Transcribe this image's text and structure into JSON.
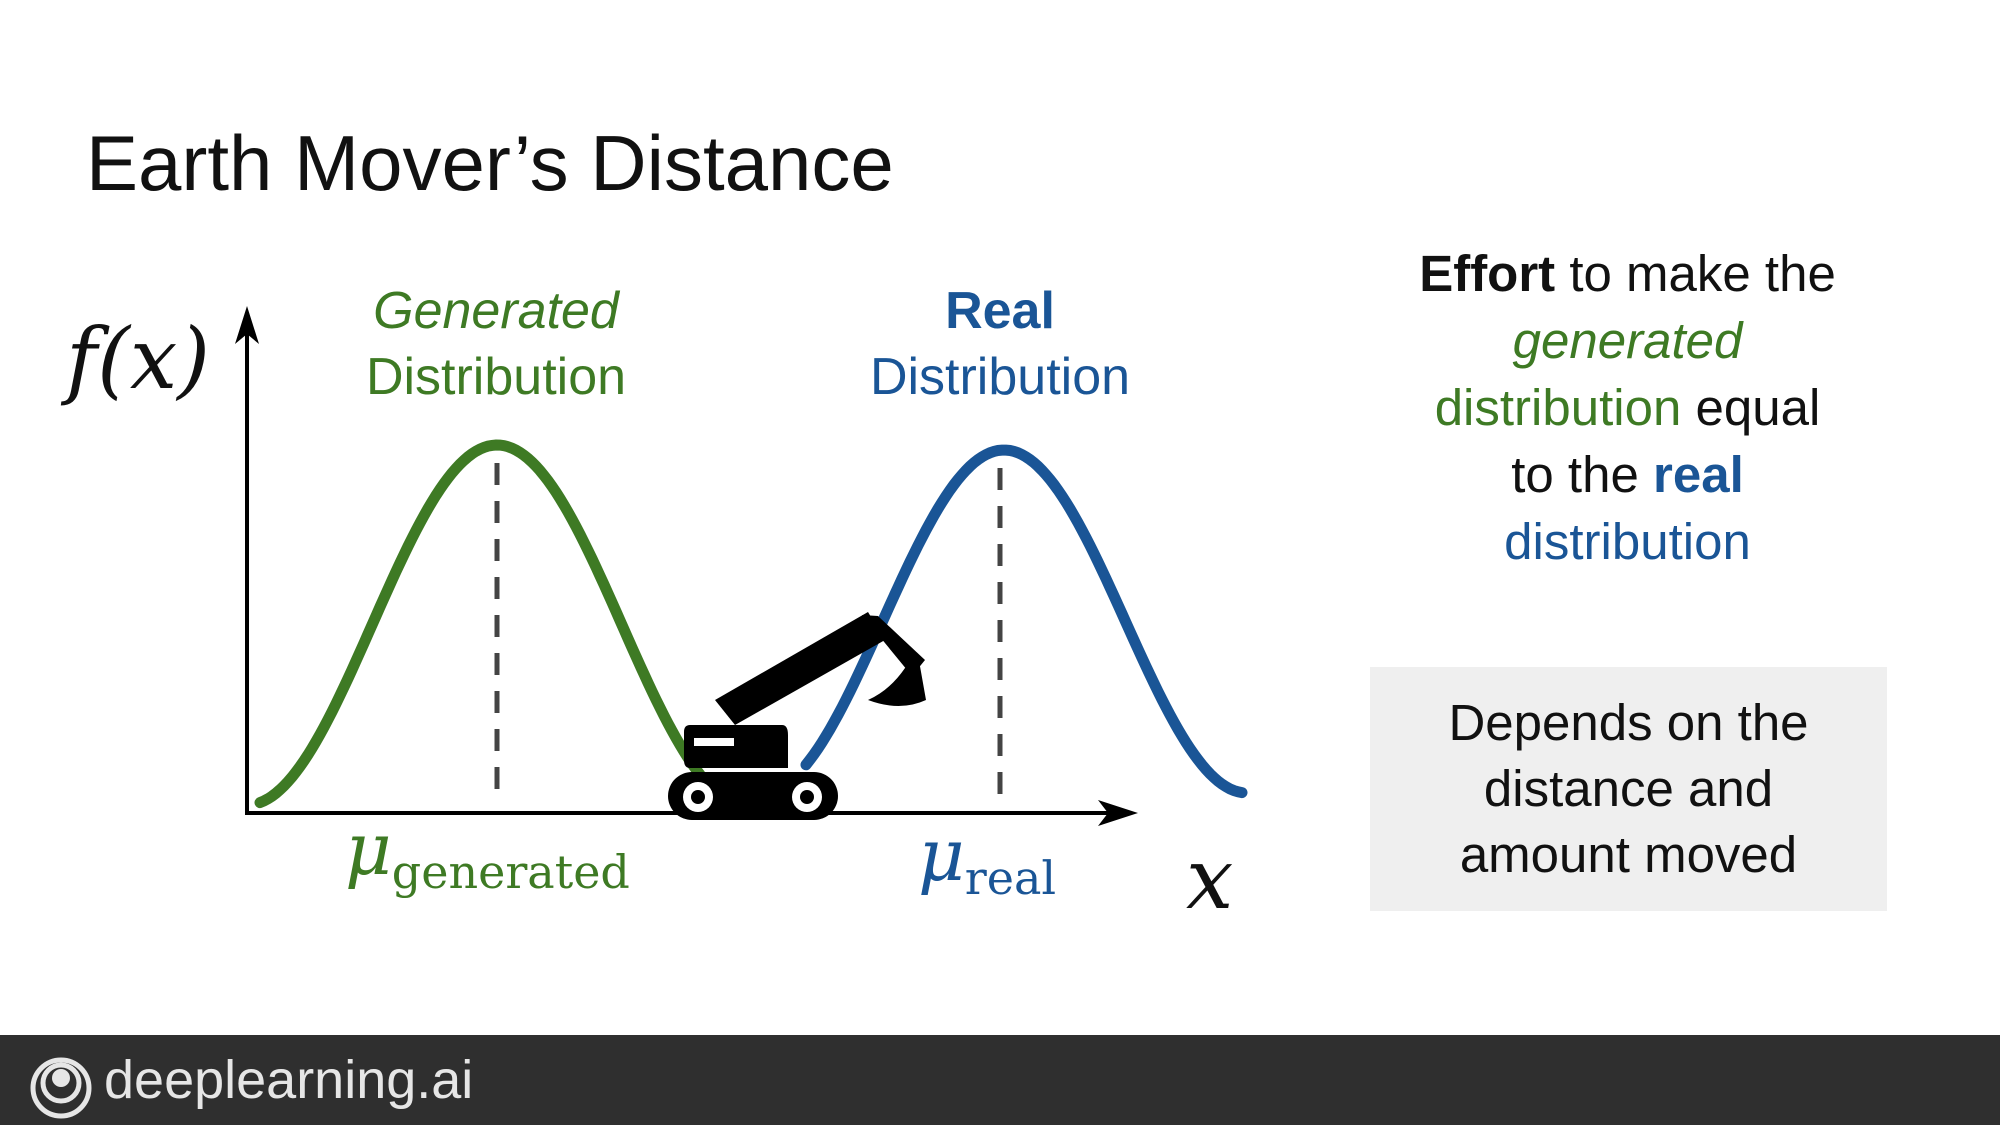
{
  "slide": {
    "title": "Earth Mover’s Distance"
  },
  "diagram": {
    "y_axis_label": "f(x)",
    "x_axis_label": "x",
    "generated": {
      "line1": "Generated",
      "line2": "Distribution",
      "mu_symbol": "μ",
      "mu_subscript": "generated",
      "color": "#3e7a24"
    },
    "real": {
      "line1": "Real",
      "line2": "Distribution",
      "mu_symbol": "μ",
      "mu_subscript": "real",
      "color": "#1a5596"
    },
    "icon": "excavator-icon"
  },
  "effort": {
    "word_effort": "Effort",
    "text_to_make_the": " to make the",
    "word_generated": "generated",
    "word_distribution_green": "distribution",
    "text_equal": " equal",
    "text_to_the": "to the ",
    "word_real": "real",
    "word_distribution_blue": "distribution"
  },
  "note": {
    "text": "Depends on the distance and amount moved"
  },
  "footer": {
    "brand": "deeplearning.ai",
    "icon": "deeplearning-logo-icon"
  }
}
